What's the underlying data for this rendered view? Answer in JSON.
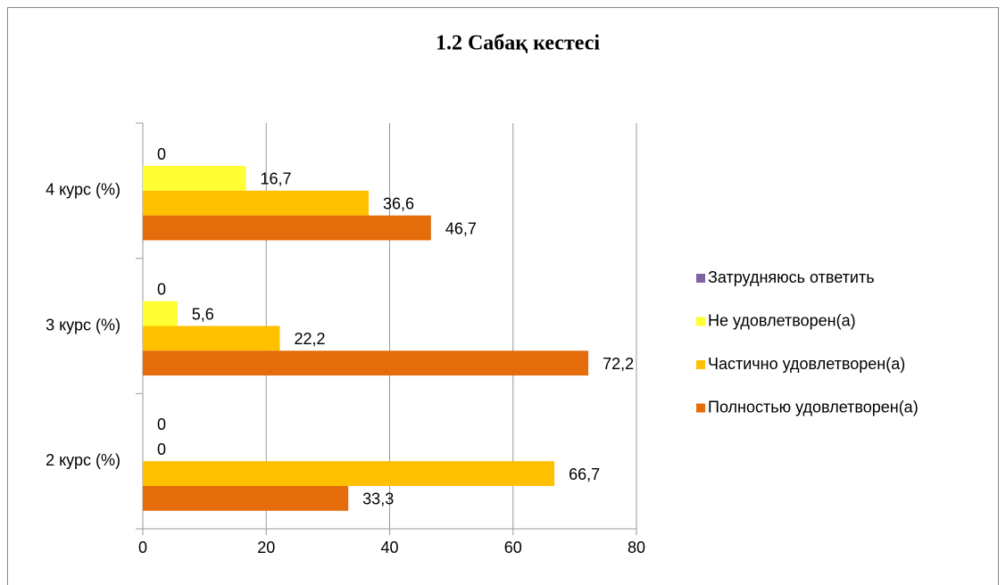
{
  "chart_data": {
    "type": "hbar",
    "title": "1.2 Сабақ кестесі",
    "categories": [
      "2 курс (%)",
      "3 курс (%)",
      "4 курс (%)"
    ],
    "series": [
      {
        "name": "Затрудняюсь ответить",
        "color": "#8064a2",
        "values": [
          0,
          0,
          0
        ],
        "value_labels": [
          "0",
          "0",
          "0"
        ]
      },
      {
        "name": "Не удовлетворен(а)",
        "color": "#ffff33",
        "values": [
          0,
          5.6,
          16.7
        ],
        "value_labels": [
          "0",
          "5,6",
          "16,7"
        ]
      },
      {
        "name": "Частично удовлетворен(а)",
        "color": "#ffc000",
        "values": [
          66.7,
          22.2,
          36.6
        ],
        "value_labels": [
          "66,7",
          "22,2",
          "36,6"
        ]
      },
      {
        "name": "Полностью удовлетворен(а)",
        "color": "#e46c0a",
        "values": [
          33.3,
          72.2,
          46.7
        ],
        "value_labels": [
          "33,3",
          "72,2",
          "46,7"
        ]
      }
    ],
    "xlim": [
      0,
      80
    ],
    "xticks": [
      0,
      20,
      40,
      60,
      80
    ],
    "grid": true,
    "legend": "right"
  }
}
